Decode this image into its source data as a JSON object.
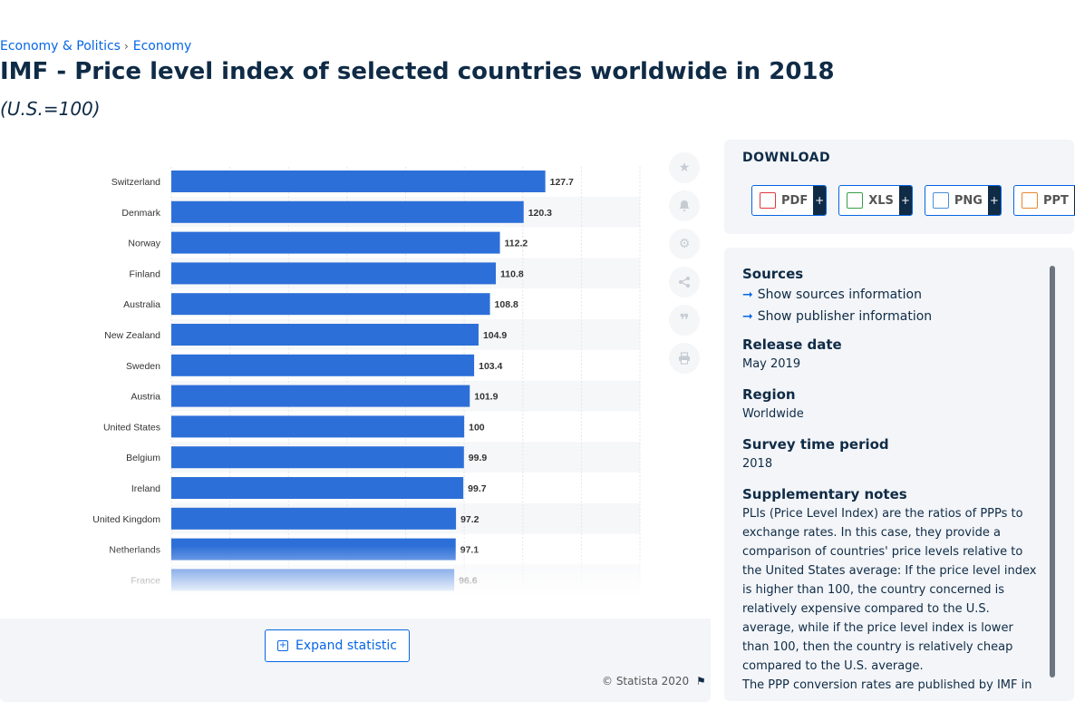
{
  "breadcrumb": {
    "items": [
      "Economy & Politics",
      "Economy"
    ]
  },
  "page": {
    "title": "IMF - Price level index of selected countries worldwide in 2018",
    "subtitle": "(U.S.=100)"
  },
  "chart_data": {
    "type": "bar",
    "orientation": "horizontal",
    "categories": [
      "Switzerland",
      "Denmark",
      "Norway",
      "Finland",
      "Australia",
      "New Zealand",
      "Sweden",
      "Austria",
      "United States",
      "Belgium",
      "Ireland",
      "United Kingdom",
      "Netherlands",
      "France"
    ],
    "values": [
      127.7,
      120.3,
      112.2,
      110.8,
      108.8,
      104.9,
      103.4,
      101.9,
      100,
      99.9,
      99.7,
      97.2,
      97.1,
      96.6
    ],
    "value_labels": [
      "127.7",
      "120.3",
      "112.2",
      "110.8",
      "108.8",
      "104.9",
      "103.4",
      "101.9",
      "100",
      "99.9",
      "99.7",
      "97.2",
      "97.1",
      "96.6"
    ],
    "partially_visible_value": 94.6,
    "xlim": [
      0,
      160
    ],
    "bar_color": "#2d6fd8",
    "grid": true
  },
  "toolbar": {
    "icons": [
      "star-icon",
      "bell-icon",
      "gear-icon",
      "share-icon",
      "quote-icon",
      "print-icon"
    ]
  },
  "expand": {
    "label": "Expand statistic"
  },
  "copyright": {
    "text": "© Statista 2020"
  },
  "download": {
    "title": "DOWNLOAD",
    "buttons": [
      {
        "label": "PDF",
        "plus": "+",
        "color": "#e0383e"
      },
      {
        "label": "XLS",
        "plus": "+",
        "color": "#3a9d4a"
      },
      {
        "label": "PNG",
        "plus": "+",
        "color": "#4b8fd6"
      },
      {
        "label": "PPT",
        "plus": "+",
        "color": "#e58a2e"
      }
    ]
  },
  "info": {
    "sources_heading": "Sources",
    "show_sources": "Show sources information",
    "show_publisher": "Show publisher information",
    "release_heading": "Release date",
    "release_value": "May 2019",
    "region_heading": "Region",
    "region_value": "Worldwide",
    "survey_heading": "Survey time period",
    "survey_value": "2018",
    "notes_heading": "Supplementary notes",
    "notes_text": "PLIs (Price Level Index) are the ratios of PPPs to exchange rates. In this case, they provide a comparison of countries' price levels relative to the United States average: If the price level index is higher than 100, the country concerned is relatively expensive compared to the U.S. average, while if the price level index is lower than 100, then the country is relatively cheap compared to the U.S. average.",
    "notes_text_2": "The PPP conversion rates are published by IMF in"
  }
}
